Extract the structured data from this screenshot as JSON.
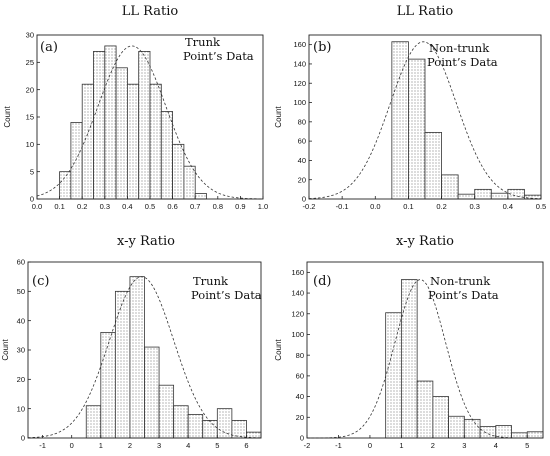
{
  "chart_data": [
    {
      "type": "histogram",
      "title": "LL Ratio",
      "panel_label": "(a)",
      "annotation": [
        "Trunk",
        "Point’s Data"
      ],
      "xlabel": "",
      "ylabel": "Count",
      "xlim": [
        0.0,
        1.0
      ],
      "ylim": [
        0,
        30
      ],
      "x_ticks": [
        "0.0",
        "0.1",
        "0.2",
        "0.3",
        "0.4",
        "0.5",
        "0.6",
        "0.7",
        "0.8",
        "0.9",
        "1.0"
      ],
      "y_ticks": [
        "0",
        "5",
        "10",
        "15",
        "20",
        "25",
        "30"
      ],
      "bins": [
        {
          "x0": 0.1,
          "x1": 0.15,
          "count": 5
        },
        {
          "x0": 0.15,
          "x1": 0.2,
          "count": 14
        },
        {
          "x0": 0.2,
          "x1": 0.25,
          "count": 21
        },
        {
          "x0": 0.25,
          "x1": 0.3,
          "count": 27
        },
        {
          "x0": 0.3,
          "x1": 0.35,
          "count": 28
        },
        {
          "x0": 0.35,
          "x1": 0.4,
          "count": 24
        },
        {
          "x0": 0.4,
          "x1": 0.45,
          "count": 21
        },
        {
          "x0": 0.45,
          "x1": 0.5,
          "count": 27
        },
        {
          "x0": 0.5,
          "x1": 0.55,
          "count": 21
        },
        {
          "x0": 0.55,
          "x1": 0.6,
          "count": 16
        },
        {
          "x0": 0.6,
          "x1": 0.65,
          "count": 10
        },
        {
          "x0": 0.65,
          "x1": 0.7,
          "count": 6
        },
        {
          "x0": 0.7,
          "x1": 0.75,
          "count": 1
        }
      ],
      "fit_curve": {
        "type": "normal",
        "mean": 0.42,
        "sd": 0.15,
        "peak": 28
      }
    },
    {
      "type": "histogram",
      "title": "LL Ratio",
      "panel_label": "(b)",
      "annotation": [
        "Non-trunk",
        "Point’s Data"
      ],
      "xlabel": "",
      "ylabel": "Count",
      "xlim": [
        -0.2,
        0.5
      ],
      "ylim": [
        0,
        170
      ],
      "x_ticks": [
        "-0.2",
        "-0.1",
        "0.0",
        "0.1",
        "0.2",
        "0.3",
        "0.4",
        "0.5"
      ],
      "y_ticks": [
        "0",
        "20",
        "40",
        "60",
        "80",
        "100",
        "120",
        "140",
        "160"
      ],
      "bins": [
        {
          "x0": 0.05,
          "x1": 0.1,
          "count": 163
        },
        {
          "x0": 0.1,
          "x1": 0.15,
          "count": 145
        },
        {
          "x0": 0.15,
          "x1": 0.2,
          "count": 69
        },
        {
          "x0": 0.2,
          "x1": 0.25,
          "count": 25
        },
        {
          "x0": 0.25,
          "x1": 0.3,
          "count": 5
        },
        {
          "x0": 0.3,
          "x1": 0.35,
          "count": 10
        },
        {
          "x0": 0.35,
          "x1": 0.4,
          "count": 6
        },
        {
          "x0": 0.4,
          "x1": 0.45,
          "count": 10
        },
        {
          "x0": 0.45,
          "x1": 0.5,
          "count": 4
        }
      ],
      "fit_curve": {
        "type": "normal",
        "mean": 0.145,
        "sd": 0.1,
        "peak": 163
      }
    },
    {
      "type": "histogram",
      "title": "x-y Ratio",
      "panel_label": "(c)",
      "annotation": [
        "Trunk",
        "Point’s Data"
      ],
      "xlabel": "",
      "ylabel": "Count",
      "xlim": [
        -1.5,
        6.5
      ],
      "ylim": [
        0,
        60
      ],
      "x_ticks": [
        "-1",
        "0",
        "1",
        "2",
        "3",
        "4",
        "5",
        "6"
      ],
      "x_tick_values": [
        -1,
        0,
        1,
        2,
        3,
        4,
        5,
        6
      ],
      "y_ticks": [
        "0",
        "10",
        "20",
        "30",
        "40",
        "50",
        "60"
      ],
      "bins": [
        {
          "x0": 0.5,
          "x1": 1.0,
          "count": 11
        },
        {
          "x0": 1.0,
          "x1": 1.5,
          "count": 36
        },
        {
          "x0": 1.5,
          "x1": 2.0,
          "count": 50
        },
        {
          "x0": 2.0,
          "x1": 2.5,
          "count": 55
        },
        {
          "x0": 2.5,
          "x1": 3.0,
          "count": 31
        },
        {
          "x0": 3.0,
          "x1": 3.5,
          "count": 18
        },
        {
          "x0": 3.5,
          "x1": 4.0,
          "count": 11
        },
        {
          "x0": 4.0,
          "x1": 4.5,
          "count": 8
        },
        {
          "x0": 4.5,
          "x1": 5.0,
          "count": 6
        },
        {
          "x0": 5.0,
          "x1": 5.5,
          "count": 10
        },
        {
          "x0": 5.5,
          "x1": 6.0,
          "count": 6
        },
        {
          "x0": 6.0,
          "x1": 6.5,
          "count": 2
        }
      ],
      "fit_curve": {
        "type": "normal",
        "mean": 2.4,
        "sd": 1.1,
        "peak": 55
      }
    },
    {
      "type": "histogram",
      "title": "x-y Ratio",
      "panel_label": "(d)",
      "annotation": [
        "Non-trunk",
        "Point’s Data"
      ],
      "xlabel": "",
      "ylabel": "Count",
      "xlim": [
        -2,
        5.5
      ],
      "ylim": [
        0,
        170
      ],
      "x_ticks": [
        "-2",
        "-1",
        "0",
        "1",
        "2",
        "3",
        "4",
        "5"
      ],
      "x_tick_values": [
        -2,
        -1,
        0,
        1,
        2,
        3,
        4,
        5
      ],
      "y_ticks": [
        "0",
        "20",
        "40",
        "60",
        "80",
        "100",
        "120",
        "140",
        "160"
      ],
      "bins": [
        {
          "x0": 0.5,
          "x1": 1.0,
          "count": 121
        },
        {
          "x0": 1.0,
          "x1": 1.5,
          "count": 153
        },
        {
          "x0": 1.5,
          "x1": 2.0,
          "count": 55
        },
        {
          "x0": 2.0,
          "x1": 2.5,
          "count": 40
        },
        {
          "x0": 2.5,
          "x1": 3.0,
          "count": 21
        },
        {
          "x0": 3.0,
          "x1": 3.5,
          "count": 18
        },
        {
          "x0": 3.5,
          "x1": 4.0,
          "count": 11
        },
        {
          "x0": 4.0,
          "x1": 4.5,
          "count": 12
        },
        {
          "x0": 4.5,
          "x1": 5.0,
          "count": 5
        },
        {
          "x0": 5.0,
          "x1": 5.5,
          "count": 6
        }
      ],
      "fit_curve": {
        "type": "normal",
        "mean": 1.6,
        "sd": 0.8,
        "peak": 153
      }
    }
  ]
}
